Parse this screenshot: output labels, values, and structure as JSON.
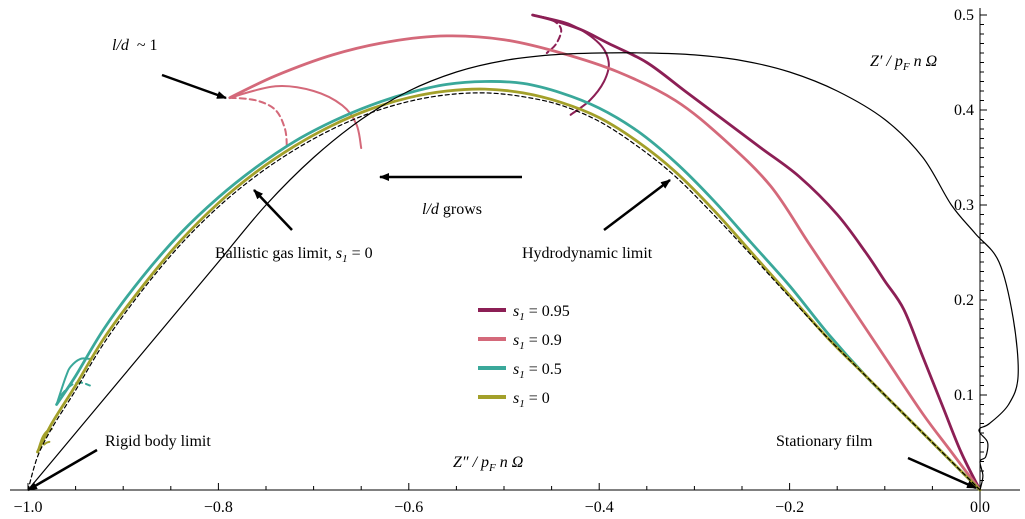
{
  "chart_data": {
    "type": "line",
    "xlim": [
      -1.0,
      0.0
    ],
    "ylim": [
      0.0,
      0.5
    ],
    "x_ticks": [
      -1.0,
      -0.8,
      -0.6,
      -0.4,
      -0.2,
      0.0
    ],
    "x_tick_labels": [
      "−1.0",
      "−0.8",
      "−0.6",
      "−0.4",
      "−0.2",
      "0.0"
    ],
    "y_ticks": [
      0.1,
      0.2,
      0.3,
      0.4,
      0.5
    ],
    "y_tick_labels": [
      "0.1",
      "0.2",
      "0.3",
      "0.4",
      "0.5"
    ],
    "xlabel": "Z″ / p_F n Ω",
    "ylabel": "Z′ / p_F n Ω",
    "legend_position": "center",
    "colors": {
      "s095": "#8c1f55",
      "s09": "#d4697a",
      "s05": "#3aa89a",
      "s0": "#a3a02a",
      "ballistic": "#000000",
      "hydro": "#000000"
    },
    "series": [
      {
        "name": "s_1 = 0.95",
        "color": "#8c1f55",
        "points": [
          [
            0.0,
            0.0
          ],
          [
            -0.02,
            0.04
          ],
          [
            -0.04,
            0.09
          ],
          [
            -0.06,
            0.14
          ],
          [
            -0.08,
            0.19
          ],
          [
            -0.1,
            0.22
          ],
          [
            -0.12,
            0.25
          ],
          [
            -0.15,
            0.29
          ],
          [
            -0.19,
            0.33
          ],
          [
            -0.23,
            0.36
          ],
          [
            -0.27,
            0.39
          ],
          [
            -0.31,
            0.42
          ],
          [
            -0.35,
            0.45
          ],
          [
            -0.39,
            0.47
          ],
          [
            -0.42,
            0.485
          ],
          [
            -0.45,
            0.495
          ],
          [
            -0.47,
            0.5
          ]
        ],
        "branches": [
          [
            [
              -0.47,
              0.5
            ],
            [
              -0.43,
              0.49
            ],
            [
              -0.4,
              0.47
            ],
            [
              -0.39,
              0.45
            ],
            [
              -0.395,
              0.43
            ],
            [
              -0.41,
              0.41
            ],
            [
              -0.43,
              0.395
            ]
          ],
          [
            [
              -0.47,
              0.5
            ],
            [
              -0.45,
              0.495
            ],
            [
              -0.44,
              0.485
            ],
            [
              -0.445,
              0.47
            ],
            [
              -0.455,
              0.46
            ]
          ]
        ]
      },
      {
        "name": "s_1 = 0.9",
        "color": "#d4697a",
        "points": [
          [
            0.0,
            0.0
          ],
          [
            -0.03,
            0.04
          ],
          [
            -0.06,
            0.08
          ],
          [
            -0.1,
            0.14
          ],
          [
            -0.14,
            0.2
          ],
          [
            -0.18,
            0.26
          ],
          [
            -0.22,
            0.32
          ],
          [
            -0.27,
            0.37
          ],
          [
            -0.32,
            0.41
          ],
          [
            -0.38,
            0.44
          ],
          [
            -0.44,
            0.46
          ],
          [
            -0.5,
            0.474
          ],
          [
            -0.56,
            0.478
          ],
          [
            -0.62,
            0.472
          ],
          [
            -0.68,
            0.458
          ],
          [
            -0.74,
            0.436
          ],
          [
            -0.788,
            0.413
          ]
        ],
        "branches": [
          [
            [
              -0.788,
              0.413
            ],
            [
              -0.74,
              0.425
            ],
            [
              -0.7,
              0.42
            ],
            [
              -0.67,
              0.405
            ],
            [
              -0.655,
              0.385
            ],
            [
              -0.65,
              0.36
            ]
          ],
          [
            [
              -0.788,
              0.413
            ],
            [
              -0.76,
              0.41
            ],
            [
              -0.74,
              0.4
            ],
            [
              -0.73,
              0.38
            ],
            [
              -0.728,
              0.36
            ]
          ]
        ]
      },
      {
        "name": "s_1 = 0.5",
        "color": "#3aa89a",
        "points": [
          [
            0.0,
            0.0
          ],
          [
            -0.04,
            0.04
          ],
          [
            -0.08,
            0.08
          ],
          [
            -0.12,
            0.12
          ],
          [
            -0.16,
            0.165
          ],
          [
            -0.2,
            0.215
          ],
          [
            -0.24,
            0.26
          ],
          [
            -0.28,
            0.305
          ],
          [
            -0.32,
            0.345
          ],
          [
            -0.36,
            0.378
          ],
          [
            -0.4,
            0.402
          ],
          [
            -0.44,
            0.418
          ],
          [
            -0.48,
            0.428
          ],
          [
            -0.52,
            0.43
          ],
          [
            -0.56,
            0.427
          ],
          [
            -0.6,
            0.418
          ],
          [
            -0.64,
            0.405
          ],
          [
            -0.68,
            0.388
          ],
          [
            -0.72,
            0.367
          ],
          [
            -0.76,
            0.34
          ],
          [
            -0.8,
            0.308
          ],
          [
            -0.84,
            0.27
          ],
          [
            -0.88,
            0.224
          ],
          [
            -0.92,
            0.17
          ],
          [
            -0.95,
            0.12
          ],
          [
            -0.97,
            0.09
          ]
        ],
        "branches": [
          [
            [
              -0.97,
              0.09
            ],
            [
              -0.96,
              0.12
            ],
            [
              -0.955,
              0.13
            ],
            [
              -0.945,
              0.138
            ],
            [
              -0.935,
              0.138
            ]
          ],
          [
            [
              -0.97,
              0.09
            ],
            [
              -0.965,
              0.1
            ],
            [
              -0.955,
              0.11
            ],
            [
              -0.945,
              0.113
            ],
            [
              -0.935,
              0.11
            ]
          ]
        ]
      },
      {
        "name": "s_1 = 0",
        "color": "#a3a02a",
        "points": [
          [
            0.0,
            0.0
          ],
          [
            -0.04,
            0.04
          ],
          [
            -0.08,
            0.08
          ],
          [
            -0.12,
            0.12
          ],
          [
            -0.16,
            0.16
          ],
          [
            -0.2,
            0.205
          ],
          [
            -0.24,
            0.25
          ],
          [
            -0.28,
            0.295
          ],
          [
            -0.32,
            0.335
          ],
          [
            -0.36,
            0.367
          ],
          [
            -0.4,
            0.392
          ],
          [
            -0.44,
            0.408
          ],
          [
            -0.48,
            0.418
          ],
          [
            -0.52,
            0.422
          ],
          [
            -0.56,
            0.42
          ],
          [
            -0.6,
            0.413
          ],
          [
            -0.64,
            0.401
          ],
          [
            -0.68,
            0.384
          ],
          [
            -0.72,
            0.362
          ],
          [
            -0.76,
            0.335
          ],
          [
            -0.8,
            0.302
          ],
          [
            -0.84,
            0.262
          ],
          [
            -0.88,
            0.214
          ],
          [
            -0.92,
            0.16
          ],
          [
            -0.95,
            0.11
          ],
          [
            -0.975,
            0.07
          ],
          [
            -0.99,
            0.04
          ]
        ],
        "branches": [
          [
            [
              -0.99,
              0.04
            ],
            [
              -0.985,
              0.055
            ],
            [
              -0.98,
              0.062
            ],
            [
              -0.975,
              0.064
            ]
          ],
          [
            [
              -0.99,
              0.04
            ],
            [
              -0.985,
              0.046
            ],
            [
              -0.98,
              0.05
            ],
            [
              -0.975,
              0.051
            ]
          ]
        ]
      },
      {
        "name": "Ballistic gas limit",
        "color": "#000000",
        "points": [
          [
            -1.0,
            0.0
          ],
          [
            -0.95,
            0.06
          ],
          [
            -0.9,
            0.12
          ],
          [
            -0.85,
            0.18
          ],
          [
            -0.8,
            0.24
          ],
          [
            -0.75,
            0.3
          ],
          [
            -0.7,
            0.35
          ],
          [
            -0.65,
            0.39
          ],
          [
            -0.6,
            0.42
          ],
          [
            -0.55,
            0.44
          ],
          [
            -0.5,
            0.452
          ],
          [
            -0.45,
            0.458
          ],
          [
            -0.4,
            0.46
          ],
          [
            -0.35,
            0.46
          ],
          [
            -0.3,
            0.458
          ],
          [
            -0.25,
            0.452
          ],
          [
            -0.2,
            0.44
          ],
          [
            -0.15,
            0.42
          ],
          [
            -0.1,
            0.39
          ],
          [
            -0.06,
            0.35
          ],
          [
            -0.03,
            0.3
          ],
          [
            -0.005,
            0.27
          ],
          [
            0.02,
            0.24
          ],
          [
            0.035,
            0.18
          ],
          [
            0.04,
            0.12
          ],
          [
            0.03,
            0.09
          ],
          [
            0.01,
            0.07
          ],
          [
            0.0,
            0.065
          ],
          [
            0.0,
            0.06
          ],
          [
            0.008,
            0.05
          ],
          [
            0.006,
            0.035
          ],
          [
            0.0,
            0.03
          ],
          [
            0.003,
            0.015
          ],
          [
            0.0,
            0.0
          ]
        ]
      },
      {
        "name": "Hydrodynamic limit",
        "color": "#000000",
        "dashed": true,
        "points": [
          [
            0.0,
            0.0
          ],
          [
            -0.04,
            0.04
          ],
          [
            -0.08,
            0.08
          ],
          [
            -0.12,
            0.12
          ],
          [
            -0.16,
            0.16
          ],
          [
            -0.2,
            0.203
          ],
          [
            -0.24,
            0.247
          ],
          [
            -0.28,
            0.29
          ],
          [
            -0.32,
            0.33
          ],
          [
            -0.36,
            0.362
          ],
          [
            -0.4,
            0.388
          ],
          [
            -0.44,
            0.405
          ],
          [
            -0.48,
            0.414
          ],
          [
            -0.52,
            0.418
          ],
          [
            -0.56,
            0.416
          ],
          [
            -0.6,
            0.409
          ],
          [
            -0.64,
            0.397
          ],
          [
            -0.68,
            0.38
          ],
          [
            -0.72,
            0.358
          ],
          [
            -0.76,
            0.331
          ],
          [
            -0.8,
            0.298
          ],
          [
            -0.84,
            0.258
          ],
          [
            -0.88,
            0.21
          ],
          [
            -0.92,
            0.155
          ],
          [
            -0.95,
            0.105
          ],
          [
            -0.975,
            0.065
          ],
          [
            -0.99,
            0.035
          ],
          [
            -1.0,
            0.0
          ]
        ]
      }
    ],
    "legend": [
      {
        "prefix": "s",
        "sub": "1",
        "value": " = 0.95",
        "color": "#8c1f55"
      },
      {
        "prefix": "s",
        "sub": "1",
        "value": " = 0.9",
        "color": "#d4697a"
      },
      {
        "prefix": "s",
        "sub": "1",
        "value": " = 0.5",
        "color": "#3aa89a"
      },
      {
        "prefix": "s",
        "sub": "1",
        "value": " = 0",
        "color": "#a3a02a"
      }
    ],
    "annotations": {
      "ld_label": "l/d",
      "ld_value": "~ 1",
      "ld_grows_italic": "l/d",
      "ld_grows_text": " grows",
      "ballistic_text": "Ballistic gas limit, ",
      "ballistic_s": "s",
      "ballistic_sub": "1",
      "ballistic_eq": " = 0",
      "hydro_text": "Hydrodynamic limit",
      "rigid_text": "Rigid body limit",
      "stationary_text": "Stationary film",
      "zpp_prefix": "Z″ / ",
      "zpp_p": "p",
      "zpp_sub": "F",
      "zpp_rest": " n Ω",
      "zp_prefix": "Z′ / ",
      "zp_p": "p",
      "zp_sub": "F",
      "zp_rest": " n Ω"
    }
  }
}
